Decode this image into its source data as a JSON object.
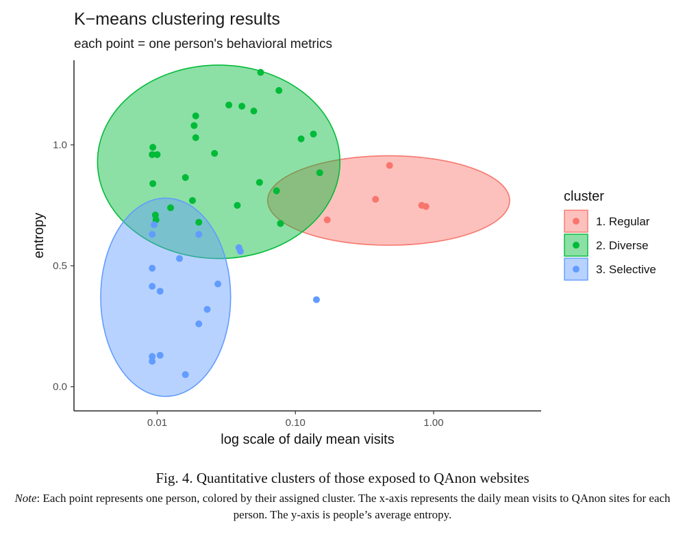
{
  "chart_data": {
    "type": "scatter",
    "title": "K−means clustering results",
    "subtitle": "each point = one person's behavioral metrics",
    "xlabel": "log scale of daily mean visits",
    "ylabel": "entropy",
    "x_scale": "log10",
    "xlim": [
      0.0025,
      6.0
    ],
    "ylim": [
      -0.1,
      1.35
    ],
    "x_ticks": [
      {
        "value": 0.01,
        "label": "0.01"
      },
      {
        "value": 0.1,
        "label": "0.10"
      },
      {
        "value": 1.0,
        "label": "1.00"
      }
    ],
    "y_ticks": [
      {
        "value": 0.0,
        "label": "0.0"
      },
      {
        "value": 0.5,
        "label": "0.5"
      },
      {
        "value": 1.0,
        "label": "1.0"
      }
    ],
    "grid": false,
    "legend": {
      "title": "cluster",
      "placement": "right"
    },
    "series": [
      {
        "name": "1. Regular",
        "color": "#F8766D",
        "points": [
          {
            "x": 0.17,
            "y": 0.69
          },
          {
            "x": 0.38,
            "y": 0.775
          },
          {
            "x": 0.48,
            "y": 0.915
          },
          {
            "x": 0.82,
            "y": 0.75
          },
          {
            "x": 0.88,
            "y": 0.745
          }
        ],
        "ellipse": {
          "center_x": 0.45,
          "center_y": 0.8,
          "x_extent": [
            0.063,
            3.55
          ],
          "y_extent": [
            0.585,
            0.955
          ]
        }
      },
      {
        "name": "2. Diverse",
        "color": "#00BA38",
        "points": [
          {
            "x": 0.056,
            "y": 1.3
          },
          {
            "x": 0.076,
            "y": 1.225
          },
          {
            "x": 0.033,
            "y": 1.165
          },
          {
            "x": 0.041,
            "y": 1.16
          },
          {
            "x": 0.05,
            "y": 1.14
          },
          {
            "x": 0.019,
            "y": 1.12
          },
          {
            "x": 0.0185,
            "y": 1.08
          },
          {
            "x": 0.019,
            "y": 1.03
          },
          {
            "x": 0.135,
            "y": 1.045
          },
          {
            "x": 0.11,
            "y": 1.025
          },
          {
            "x": 0.0093,
            "y": 0.99
          },
          {
            "x": 0.0092,
            "y": 0.96
          },
          {
            "x": 0.01,
            "y": 0.96
          },
          {
            "x": 0.026,
            "y": 0.965
          },
          {
            "x": 0.016,
            "y": 0.865
          },
          {
            "x": 0.15,
            "y": 0.885
          },
          {
            "x": 0.0093,
            "y": 0.84
          },
          {
            "x": 0.055,
            "y": 0.845
          },
          {
            "x": 0.073,
            "y": 0.81
          },
          {
            "x": 0.018,
            "y": 0.77
          },
          {
            "x": 0.038,
            "y": 0.75
          },
          {
            "x": 0.0125,
            "y": 0.74
          },
          {
            "x": 0.0097,
            "y": 0.71
          },
          {
            "x": 0.0098,
            "y": 0.69
          },
          {
            "x": 0.02,
            "y": 0.68
          },
          {
            "x": 0.078,
            "y": 0.675
          }
        ],
        "ellipse": {
          "center_x": 0.025,
          "center_y": 0.9,
          "x_extent": [
            0.0037,
            0.21
          ],
          "y_extent": [
            0.53,
            1.33
          ]
        }
      },
      {
        "name": "3. Selective",
        "color": "#619CFF",
        "points": [
          {
            "x": 0.0095,
            "y": 0.67
          },
          {
            "x": 0.0092,
            "y": 0.63
          },
          {
            "x": 0.02,
            "y": 0.63
          },
          {
            "x": 0.039,
            "y": 0.575
          },
          {
            "x": 0.04,
            "y": 0.56
          },
          {
            "x": 0.0145,
            "y": 0.53
          },
          {
            "x": 0.0092,
            "y": 0.49
          },
          {
            "x": 0.0275,
            "y": 0.425
          },
          {
            "x": 0.0092,
            "y": 0.415
          },
          {
            "x": 0.0105,
            "y": 0.395
          },
          {
            "x": 0.142,
            "y": 0.36
          },
          {
            "x": 0.023,
            "y": 0.32
          },
          {
            "x": 0.02,
            "y": 0.26
          },
          {
            "x": 0.0105,
            "y": 0.13
          },
          {
            "x": 0.0092,
            "y": 0.125
          },
          {
            "x": 0.0092,
            "y": 0.105
          },
          {
            "x": 0.016,
            "y": 0.05
          }
        ],
        "ellipse": {
          "center_x": 0.011,
          "center_y": 0.37,
          "x_extent": [
            0.0039,
            0.034
          ],
          "y_extent": [
            -0.04,
            0.78
          ]
        }
      }
    ]
  },
  "caption": {
    "figure": "Fig. 4. Quantitative clusters of those exposed to QAnon websites",
    "note_label": "Note",
    "note_text": ": Each point represents one person, colored by their assigned cluster. The x-axis represents the daily mean visits to QAnon sites for each person. The y-axis is people’s average entropy."
  }
}
